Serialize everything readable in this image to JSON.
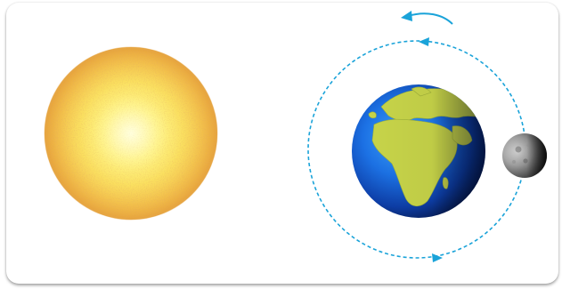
{
  "diagram": {
    "bodies": [
      "sun",
      "earth",
      "moon"
    ],
    "orbit": {
      "style": "dashed",
      "direction": "counterclockwise",
      "color": "#1aa3d9"
    },
    "rotation_arrow": {
      "direction": "counterclockwise",
      "color": "#1aa3d9"
    },
    "colors": {
      "sun_core": "#fff8a0",
      "sun_mid": "#f8d640",
      "sun_edge": "#e39a2c",
      "ocean_light": "#2a8cff",
      "ocean_dark": "#0a2a7a",
      "land": "#c8d84a",
      "moon": "#9a9a9a",
      "card_background": "#ffffff"
    }
  }
}
